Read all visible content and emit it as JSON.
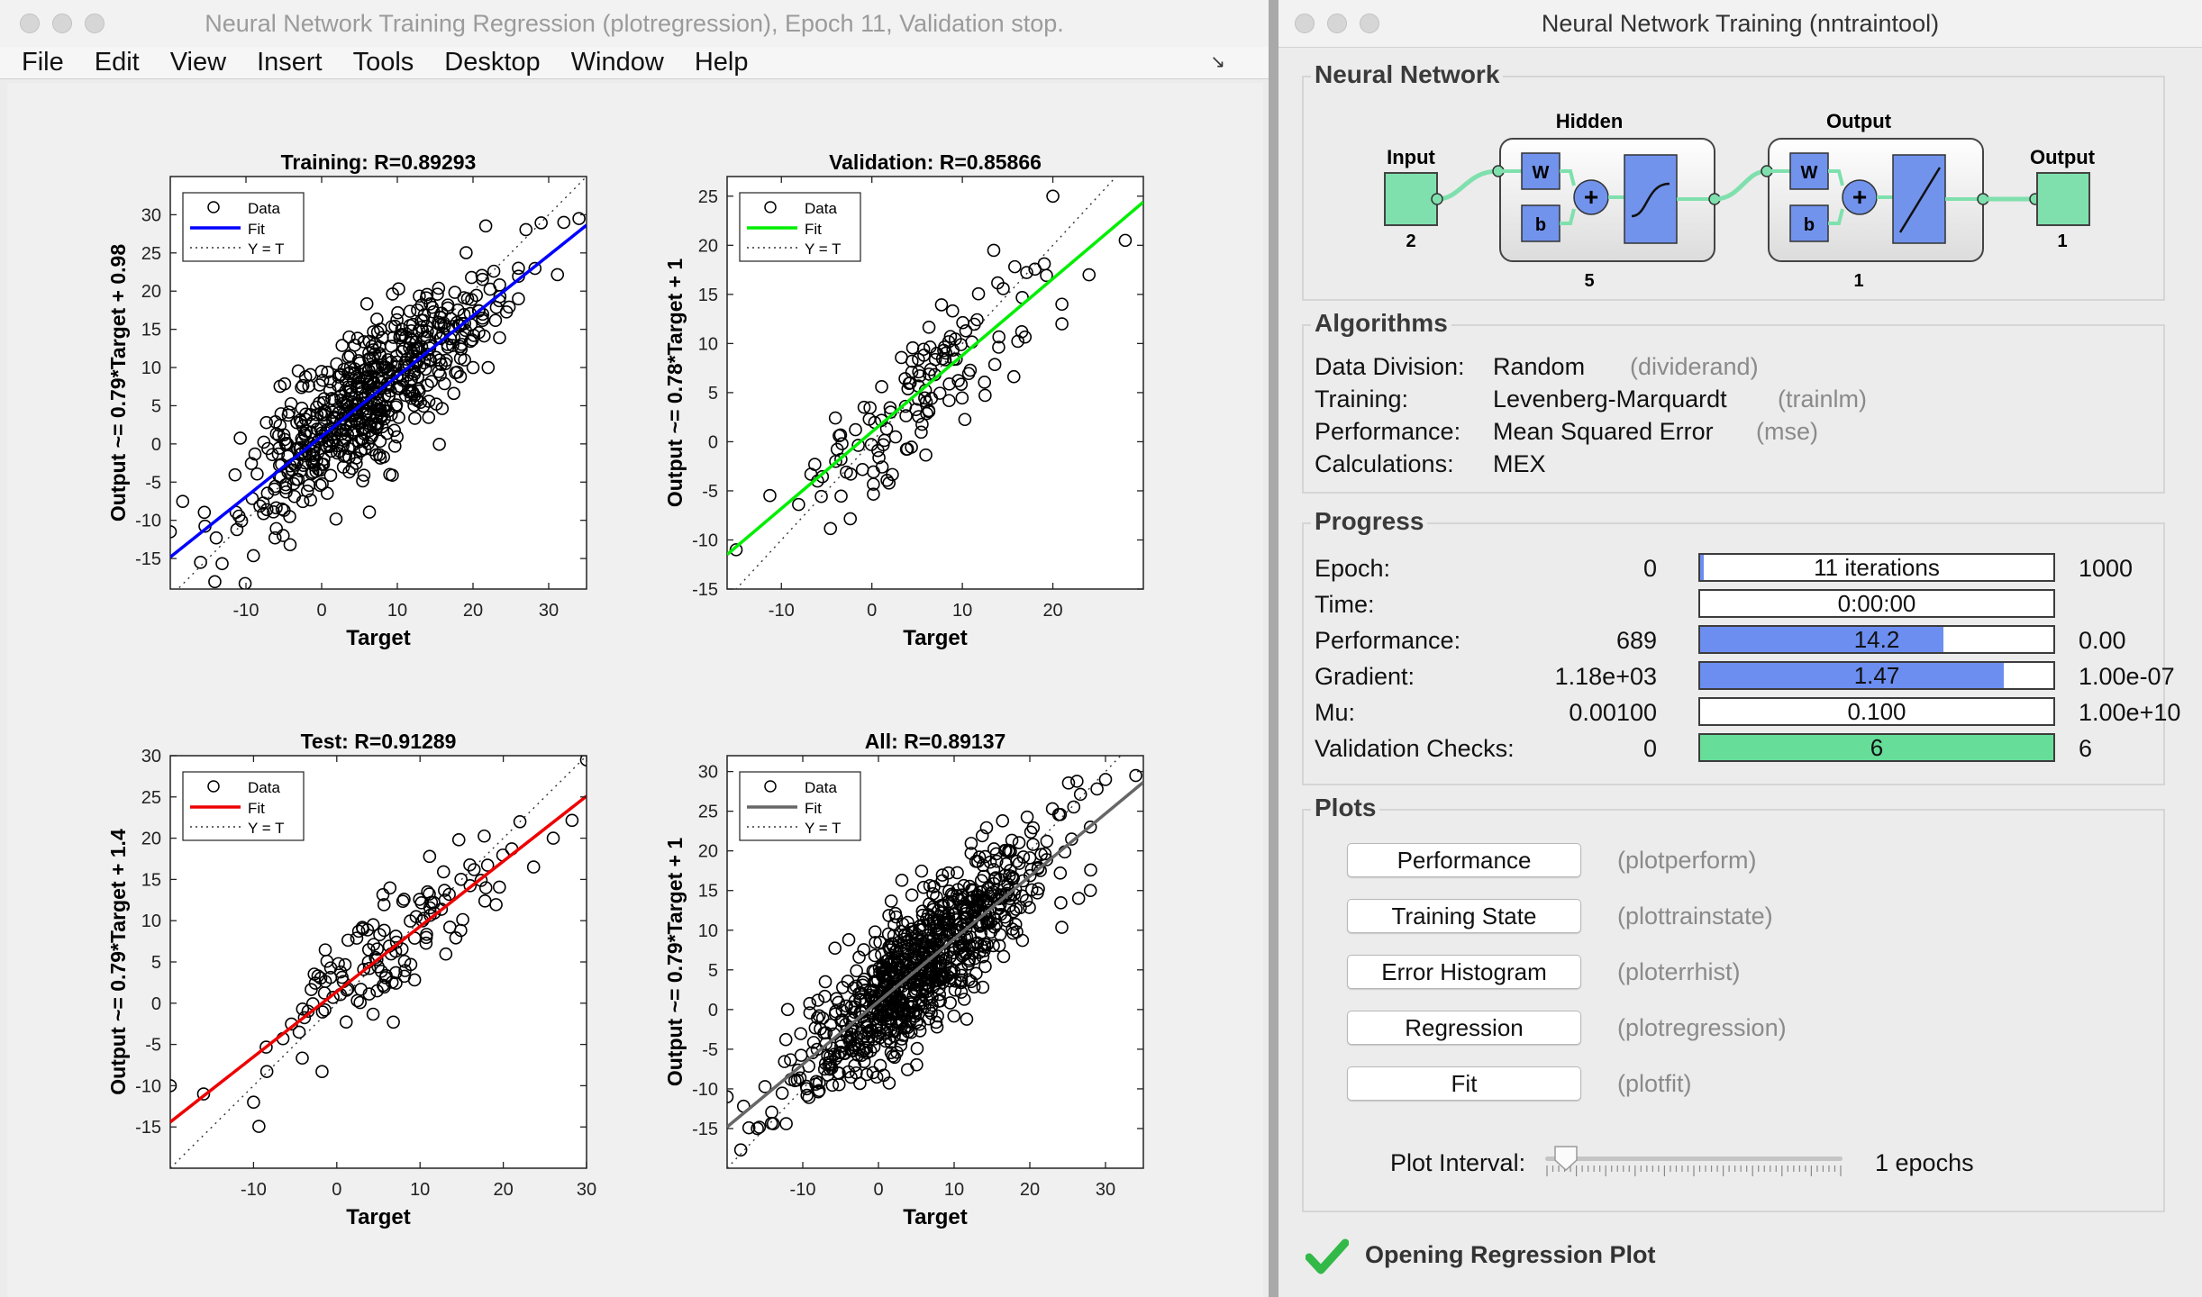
{
  "left_window": {
    "title": "Neural Network Training Regression (plotregression), Epoch 11, Validation stop.",
    "menu": [
      "File",
      "Edit",
      "View",
      "Insert",
      "Tools",
      "Desktop",
      "Window",
      "Help"
    ]
  },
  "chart_data": [
    {
      "type": "scatter",
      "title": "Training: R=0.89293",
      "xlabel": "Target",
      "ylabel": "Output ~= 0.79*Target + 0.98",
      "xlim": [
        -20,
        35
      ],
      "ylim": [
        -19,
        35
      ],
      "xticks": [
        -10,
        0,
        10,
        20,
        30
      ],
      "yticks": [
        -15,
        -10,
        -5,
        0,
        5,
        10,
        15,
        20,
        25,
        30
      ],
      "series": [
        {
          "name": "Data",
          "marker": "circle",
          "n_points": 600,
          "center": [
            6,
            6
          ],
          "spread": [
            8,
            7.5
          ],
          "extra_points": [
            [
              34,
              29.5
            ],
            [
              32,
              29
            ],
            [
              26,
              19
            ],
            [
              26,
              23
            ],
            [
              -20,
              -11.5
            ],
            [
              -16,
              -15.5
            ],
            [
              20,
              10
            ],
            [
              22,
              10
            ]
          ]
        },
        {
          "name": "Fit",
          "color": "#0000ff",
          "slope": 0.79,
          "intercept": 0.98
        },
        {
          "name": "Y = T",
          "style": "dotted",
          "color": "#222222"
        }
      ],
      "legend": "top-left"
    },
    {
      "type": "scatter",
      "title": "Validation: R=0.85866",
      "xlabel": "Target",
      "ylabel": "Output ~= 0.78*Target + 1",
      "xlim": [
        -16,
        30
      ],
      "ylim": [
        -15,
        27
      ],
      "xticks": [
        -10,
        0,
        10,
        20
      ],
      "yticks": [
        -15,
        -10,
        -5,
        0,
        5,
        10,
        15,
        20,
        25
      ],
      "series": [
        {
          "name": "Data",
          "marker": "circle",
          "n_points": 128,
          "center": [
            6,
            6
          ],
          "spread": [
            6.5,
            6.3
          ],
          "extra_points": [
            [
              20,
              25
            ],
            [
              28,
              20.5
            ],
            [
              24,
              17
            ],
            [
              21,
              14
            ],
            [
              21,
              12
            ],
            [
              -15,
              -11
            ],
            [
              -6,
              -4
            ],
            [
              -4,
              -2
            ]
          ]
        },
        {
          "name": "Fit",
          "color": "#00ee00",
          "slope": 0.78,
          "intercept": 1
        },
        {
          "name": "Y = T",
          "style": "dotted",
          "color": "#222222"
        }
      ],
      "legend": "top-left"
    },
    {
      "type": "scatter",
      "title": "Test: R=0.91289",
      "xlabel": "Target",
      "ylabel": "Output ~= 0.79*Target + 1.4",
      "xlim": [
        -20,
        30
      ],
      "ylim": [
        -20,
        30
      ],
      "xticks": [
        -10,
        0,
        10,
        20,
        30
      ],
      "yticks": [
        -15,
        -10,
        -5,
        0,
        5,
        10,
        15,
        20,
        25,
        30
      ],
      "series": [
        {
          "name": "Data",
          "marker": "circle",
          "n_points": 128,
          "center": [
            6,
            6
          ],
          "spread": [
            7.5,
            7
          ],
          "extra_points": [
            [
              30,
              29.5
            ],
            [
              26,
              20
            ],
            [
              22,
              22
            ],
            [
              -20,
              -10
            ],
            [
              -16,
              -11
            ],
            [
              -10,
              -12
            ]
          ]
        },
        {
          "name": "Fit",
          "color": "#ee0000",
          "slope": 0.79,
          "intercept": 1.4
        },
        {
          "name": "Y = T",
          "style": "dotted",
          "color": "#222222"
        }
      ],
      "legend": "top-left"
    },
    {
      "type": "scatter",
      "title": "All: R=0.89137",
      "xlabel": "Target",
      "ylabel": "Output ~= 0.79*Target + 1",
      "xlim": [
        -20,
        35
      ],
      "ylim": [
        -20,
        32
      ],
      "xticks": [
        -10,
        0,
        10,
        20,
        30
      ],
      "yticks": [
        -15,
        -10,
        -5,
        0,
        5,
        10,
        15,
        20,
        25,
        30
      ],
      "series": [
        {
          "name": "Data",
          "marker": "circle",
          "n_points": 850,
          "center": [
            6,
            6
          ],
          "spread": [
            8,
            7.5
          ],
          "extra_points": [
            [
              34,
              29.5
            ],
            [
              30,
              29
            ],
            [
              28,
              23
            ],
            [
              -20,
              -11
            ],
            [
              -16,
              -15
            ],
            [
              28,
              15
            ],
            [
              -12,
              0
            ]
          ]
        },
        {
          "name": "Fit",
          "color": "#666666",
          "slope": 0.79,
          "intercept": 1
        },
        {
          "name": "Y = T",
          "style": "dotted",
          "color": "#222222"
        }
      ],
      "legend": "top-left"
    }
  ],
  "right_window": {
    "title": "Neural Network Training (nntraintool)",
    "neural_network": {
      "heading": "Neural Network",
      "input_label": "Input",
      "input_size": "2",
      "hidden_label": "Hidden",
      "hidden_size": "5",
      "output_layer_label": "Output",
      "output_layer_size": "1",
      "output_label": "Output",
      "output_size": "1",
      "weight_symbol": "W",
      "bias_symbol": "b",
      "sum_symbol": "+"
    },
    "algorithms": {
      "heading": "Algorithms",
      "rows": [
        {
          "label": "Data Division:",
          "value": "Random",
          "fn": "(dividerand)"
        },
        {
          "label": "Training:",
          "value": "Levenberg-Marquardt",
          "fn": "(trainlm)"
        },
        {
          "label": "Performance:",
          "value": "Mean Squared Error",
          "fn": "(mse)"
        },
        {
          "label": "Calculations:",
          "value": "MEX",
          "fn": ""
        }
      ]
    },
    "progress": {
      "heading": "Progress",
      "rows": [
        {
          "label": "Epoch:",
          "start": "0",
          "bar_text": "11 iterations",
          "fill": 0.011,
          "fill_color": "#6c8ef0",
          "end": "1000"
        },
        {
          "label": "Time:",
          "start": "",
          "bar_text": "0:00:00",
          "fill": 0,
          "fill_color": "#6c8ef0",
          "end": ""
        },
        {
          "label": "Performance:",
          "start": "689",
          "bar_text": "14.2",
          "fill": 0.69,
          "fill_color": "#6c8ef0",
          "end": "0.00"
        },
        {
          "label": "Gradient:",
          "start": "1.18e+03",
          "bar_text": "1.47",
          "fill": 0.86,
          "fill_color": "#6c8ef0",
          "end": "1.00e-07"
        },
        {
          "label": "Mu:",
          "start": "0.00100",
          "bar_text": "0.100",
          "fill": 0,
          "fill_color": "#6c8ef0",
          "end": "1.00e+10"
        },
        {
          "label": "Validation Checks:",
          "start": "0",
          "bar_text": "6",
          "fill": 1.0,
          "fill_color": "#66dd99",
          "end": "6"
        }
      ]
    },
    "plots": {
      "heading": "Plots",
      "buttons": [
        {
          "label": "Performance",
          "fn": "(plotperform)"
        },
        {
          "label": "Training State",
          "fn": "(plottrainstate)"
        },
        {
          "label": "Error Histogram",
          "fn": "(ploterrhist)"
        },
        {
          "label": "Regression",
          "fn": "(plotregression)"
        },
        {
          "label": "Fit",
          "fn": "(plotfit)"
        }
      ],
      "interval_label": "Plot Interval:",
      "interval_value": "1 epochs",
      "interval_fraction": 0.0
    },
    "status": "Opening Regression Plot",
    "colors": {
      "accent": "#6c8ef0",
      "validation": "#66dd99",
      "layer_box": "#7193ec",
      "io_box": "#7fe0ad",
      "check": "#32b948"
    },
    "icons": [
      "check-icon",
      "sigmoid-icon",
      "linear-icon",
      "sum-icon"
    ]
  }
}
